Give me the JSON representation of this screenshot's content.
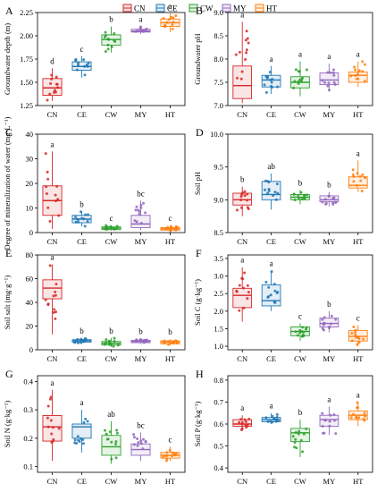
{
  "legend": {
    "position": "top",
    "items": [
      {
        "name": "CN",
        "color": "#d62728"
      },
      {
        "name": "CE",
        "color": "#1f77b4"
      },
      {
        "name": "CW",
        "color": "#2ca02c"
      },
      {
        "name": "MY",
        "color": "#9467bd"
      },
      {
        "name": "HT",
        "color": "#ff7f0e"
      }
    ]
  },
  "chart_data": [
    {
      "type": "box",
      "letter": "A",
      "ylabel": "Groundwater depth (m)",
      "categories": [
        "CN",
        "CE",
        "CW",
        "MY",
        "HT"
      ],
      "ylim": [
        1.25,
        2.25
      ],
      "yticks": [
        1.25,
        1.5,
        1.75,
        2.0,
        2.25
      ],
      "yticklabels": [
        "1.25",
        "1.50",
        "1.75",
        "2.00",
        "2.25"
      ],
      "boxes": [
        {
          "q1": 1.36,
          "median": 1.44,
          "q3": 1.54,
          "whislo": 1.3,
          "whishi": 1.65
        },
        {
          "q1": 1.63,
          "median": 1.67,
          "q3": 1.72,
          "whislo": 1.55,
          "whishi": 1.78
        },
        {
          "q1": 1.9,
          "median": 1.96,
          "q3": 2.01,
          "whislo": 1.82,
          "whishi": 2.1
        },
        {
          "q1": 2.04,
          "median": 2.05,
          "q3": 2.07,
          "whislo": 2.02,
          "whishi": 2.1
        },
        {
          "q1": 2.1,
          "median": 2.14,
          "q3": 2.18,
          "whislo": 2.04,
          "whishi": 2.24
        }
      ],
      "sig": [
        "d",
        "c",
        "b",
        "a",
        "a"
      ]
    },
    {
      "type": "box",
      "letter": "B",
      "ylabel": "Groundwater pH",
      "categories": [
        "CN",
        "CE",
        "CW",
        "MY",
        "HT"
      ],
      "ylim": [
        7.0,
        9.0
      ],
      "yticks": [
        7.0,
        7.5,
        8.0,
        8.5,
        9.0
      ],
      "yticklabels": [
        "7.0",
        "7.5",
        "8.0",
        "8.5",
        "9.0"
      ],
      "boxes": [
        {
          "q1": 7.15,
          "median": 7.43,
          "q3": 7.85,
          "whislo": 7.05,
          "whishi": 8.8
        },
        {
          "q1": 7.4,
          "median": 7.55,
          "q3": 7.65,
          "whislo": 7.25,
          "whishi": 7.85
        },
        {
          "q1": 7.38,
          "median": 7.5,
          "q3": 7.62,
          "whislo": 7.2,
          "whishi": 7.95
        },
        {
          "q1": 7.45,
          "median": 7.55,
          "q3": 7.7,
          "whislo": 7.3,
          "whishi": 7.9
        },
        {
          "q1": 7.5,
          "median": 7.65,
          "q3": 7.72,
          "whislo": 7.4,
          "whishi": 7.95
        }
      ],
      "sig": [
        "a",
        "a",
        "a",
        "a",
        "a"
      ]
    },
    {
      "type": "box",
      "letter": "C",
      "ylabel": "Degree of mineralization of water (mg·L⁻¹)",
      "categories": [
        "CN",
        "CE",
        "CW",
        "MY",
        "HT"
      ],
      "ylim": [
        0,
        40
      ],
      "yticks": [
        0,
        10,
        20,
        30,
        40
      ],
      "yticklabels": [
        "0",
        "10",
        "20",
        "30",
        "40"
      ],
      "boxes": [
        {
          "q1": 7.0,
          "median": 13.0,
          "q3": 19.0,
          "whislo": 1.5,
          "whishi": 33.0
        },
        {
          "q1": 4.0,
          "median": 5.5,
          "q3": 7.0,
          "whislo": 2.5,
          "whishi": 8.5
        },
        {
          "q1": 1.2,
          "median": 1.8,
          "q3": 2.3,
          "whislo": 0.8,
          "whishi": 3.0
        },
        {
          "q1": 2.0,
          "median": 3.5,
          "q3": 7.0,
          "whislo": 1.0,
          "whishi": 13.0
        },
        {
          "q1": 1.0,
          "median": 1.5,
          "q3": 2.0,
          "whislo": 0.5,
          "whishi": 3.0
        }
      ],
      "sig": [
        "a",
        "b",
        "c",
        "bc",
        "c"
      ]
    },
    {
      "type": "box",
      "letter": "D",
      "ylabel": "Soil pH",
      "categories": [
        "CN",
        "CE",
        "CW",
        "MY",
        "HT"
      ],
      "ylim": [
        8.5,
        10.0
      ],
      "yticks": [
        8.5,
        9.0,
        9.5,
        10.0
      ],
      "yticklabels": [
        "8.5",
        "9.0",
        "9.5",
        "10.0"
      ],
      "boxes": [
        {
          "q1": 8.92,
          "median": 9.0,
          "q3": 9.1,
          "whislo": 8.75,
          "whishi": 9.2
        },
        {
          "q1": 9.0,
          "median": 9.08,
          "q3": 9.28,
          "whislo": 8.85,
          "whishi": 9.4
        },
        {
          "q1": 9.0,
          "median": 9.04,
          "q3": 9.08,
          "whislo": 8.93,
          "whishi": 9.15
        },
        {
          "q1": 8.97,
          "median": 9.0,
          "q3": 9.06,
          "whislo": 8.9,
          "whishi": 9.12
        },
        {
          "q1": 9.18,
          "median": 9.22,
          "q3": 9.35,
          "whislo": 9.12,
          "whishi": 9.6
        }
      ],
      "sig": [
        "b",
        "ab",
        "b",
        "b",
        "a"
      ]
    },
    {
      "type": "box",
      "letter": "E",
      "ylabel": "Soil salt (mg·g⁻¹)",
      "categories": [
        "CN",
        "CE",
        "CW",
        "MY",
        "HT"
      ],
      "ylim": [
        0,
        80
      ],
      "yticks": [
        0,
        20,
        40,
        60,
        80
      ],
      "yticklabels": [
        "0",
        "20",
        "40",
        "60",
        "80"
      ],
      "boxes": [
        {
          "q1": 43.0,
          "median": 52.0,
          "q3": 59.0,
          "whislo": 13.0,
          "whishi": 72.0
        },
        {
          "q1": 6.5,
          "median": 7.5,
          "q3": 8.5,
          "whislo": 5.0,
          "whishi": 10.0
        },
        {
          "q1": 4.0,
          "median": 5.5,
          "q3": 7.0,
          "whislo": 2.5,
          "whishi": 10.0
        },
        {
          "q1": 6.0,
          "median": 7.0,
          "q3": 8.0,
          "whislo": 5.0,
          "whishi": 9.5
        },
        {
          "q1": 5.0,
          "median": 6.5,
          "q3": 7.5,
          "whislo": 4.0,
          "whishi": 9.0
        }
      ],
      "sig": [
        "a",
        "b",
        "b",
        "b",
        "b"
      ]
    },
    {
      "type": "box",
      "letter": "F",
      "ylabel": "Soil C (g·kg⁻¹)",
      "categories": [
        "CN",
        "CE",
        "CW",
        "MY",
        "HT"
      ],
      "ylim": [
        0.9,
        3.6
      ],
      "yticks": [
        1.0,
        1.5,
        2.0,
        2.5,
        3.0,
        3.5
      ],
      "yticklabels": [
        "1.0",
        "1.5",
        "2.0",
        "2.5",
        "3.0",
        "3.5"
      ],
      "boxes": [
        {
          "q1": 2.1,
          "median": 2.45,
          "q3": 2.65,
          "whislo": 1.7,
          "whishi": 3.25
        },
        {
          "q1": 2.15,
          "median": 2.3,
          "q3": 2.75,
          "whislo": 2.0,
          "whishi": 3.15
        },
        {
          "q1": 1.3,
          "median": 1.42,
          "q3": 1.55,
          "whislo": 1.15,
          "whishi": 1.65
        },
        {
          "q1": 1.55,
          "median": 1.65,
          "q3": 1.8,
          "whislo": 1.4,
          "whishi": 2.0
        },
        {
          "q1": 1.15,
          "median": 1.28,
          "q3": 1.45,
          "whislo": 1.0,
          "whishi": 1.6
        }
      ],
      "sig": [
        "a",
        "a",
        "c",
        "b",
        "c"
      ]
    },
    {
      "type": "box",
      "letter": "G",
      "ylabel": "Soil N (g·kg⁻¹)",
      "categories": [
        "CN",
        "CE",
        "CW",
        "MY",
        "HT"
      ],
      "ylim": [
        0.08,
        0.42
      ],
      "yticks": [
        0.1,
        0.2,
        0.3,
        0.4
      ],
      "yticklabels": [
        "0.1",
        "0.2",
        "0.3",
        "0.4"
      ],
      "boxes": [
        {
          "q1": 0.19,
          "median": 0.24,
          "q3": 0.28,
          "whislo": 0.12,
          "whishi": 0.37
        },
        {
          "q1": 0.2,
          "median": 0.24,
          "q3": 0.25,
          "whislo": 0.15,
          "whishi": 0.3
        },
        {
          "q1": 0.14,
          "median": 0.17,
          "q3": 0.21,
          "whislo": 0.11,
          "whishi": 0.26
        },
        {
          "q1": 0.14,
          "median": 0.16,
          "q3": 0.18,
          "whislo": 0.12,
          "whishi": 0.22
        },
        {
          "q1": 0.13,
          "median": 0.14,
          "q3": 0.15,
          "whislo": 0.12,
          "whishi": 0.17
        }
      ],
      "sig": [
        "a",
        "a",
        "ab",
        "bc",
        "c"
      ]
    },
    {
      "type": "box",
      "letter": "H",
      "ylabel": "Soil P (g·kg⁻¹)",
      "categories": [
        "CN",
        "CE",
        "CW",
        "MY",
        "HT"
      ],
      "ylim": [
        0.38,
        0.82
      ],
      "yticks": [
        0.4,
        0.5,
        0.6,
        0.7,
        0.8
      ],
      "yticklabels": [
        "0.4",
        "0.5",
        "0.6",
        "0.7",
        "0.8"
      ],
      "boxes": [
        {
          "q1": 0.59,
          "median": 0.6,
          "q3": 0.62,
          "whislo": 0.57,
          "whishi": 0.64
        },
        {
          "q1": 0.61,
          "median": 0.62,
          "q3": 0.63,
          "whislo": 0.6,
          "whishi": 0.65
        },
        {
          "q1": 0.52,
          "median": 0.56,
          "q3": 0.58,
          "whislo": 0.45,
          "whishi": 0.62
        },
        {
          "q1": 0.59,
          "median": 0.62,
          "q3": 0.64,
          "whislo": 0.55,
          "whishi": 0.68
        },
        {
          "q1": 0.62,
          "median": 0.64,
          "q3": 0.66,
          "whislo": 0.59,
          "whishi": 0.7
        }
      ],
      "sig": [
        "a",
        "a",
        "b",
        "a",
        "a"
      ]
    }
  ]
}
